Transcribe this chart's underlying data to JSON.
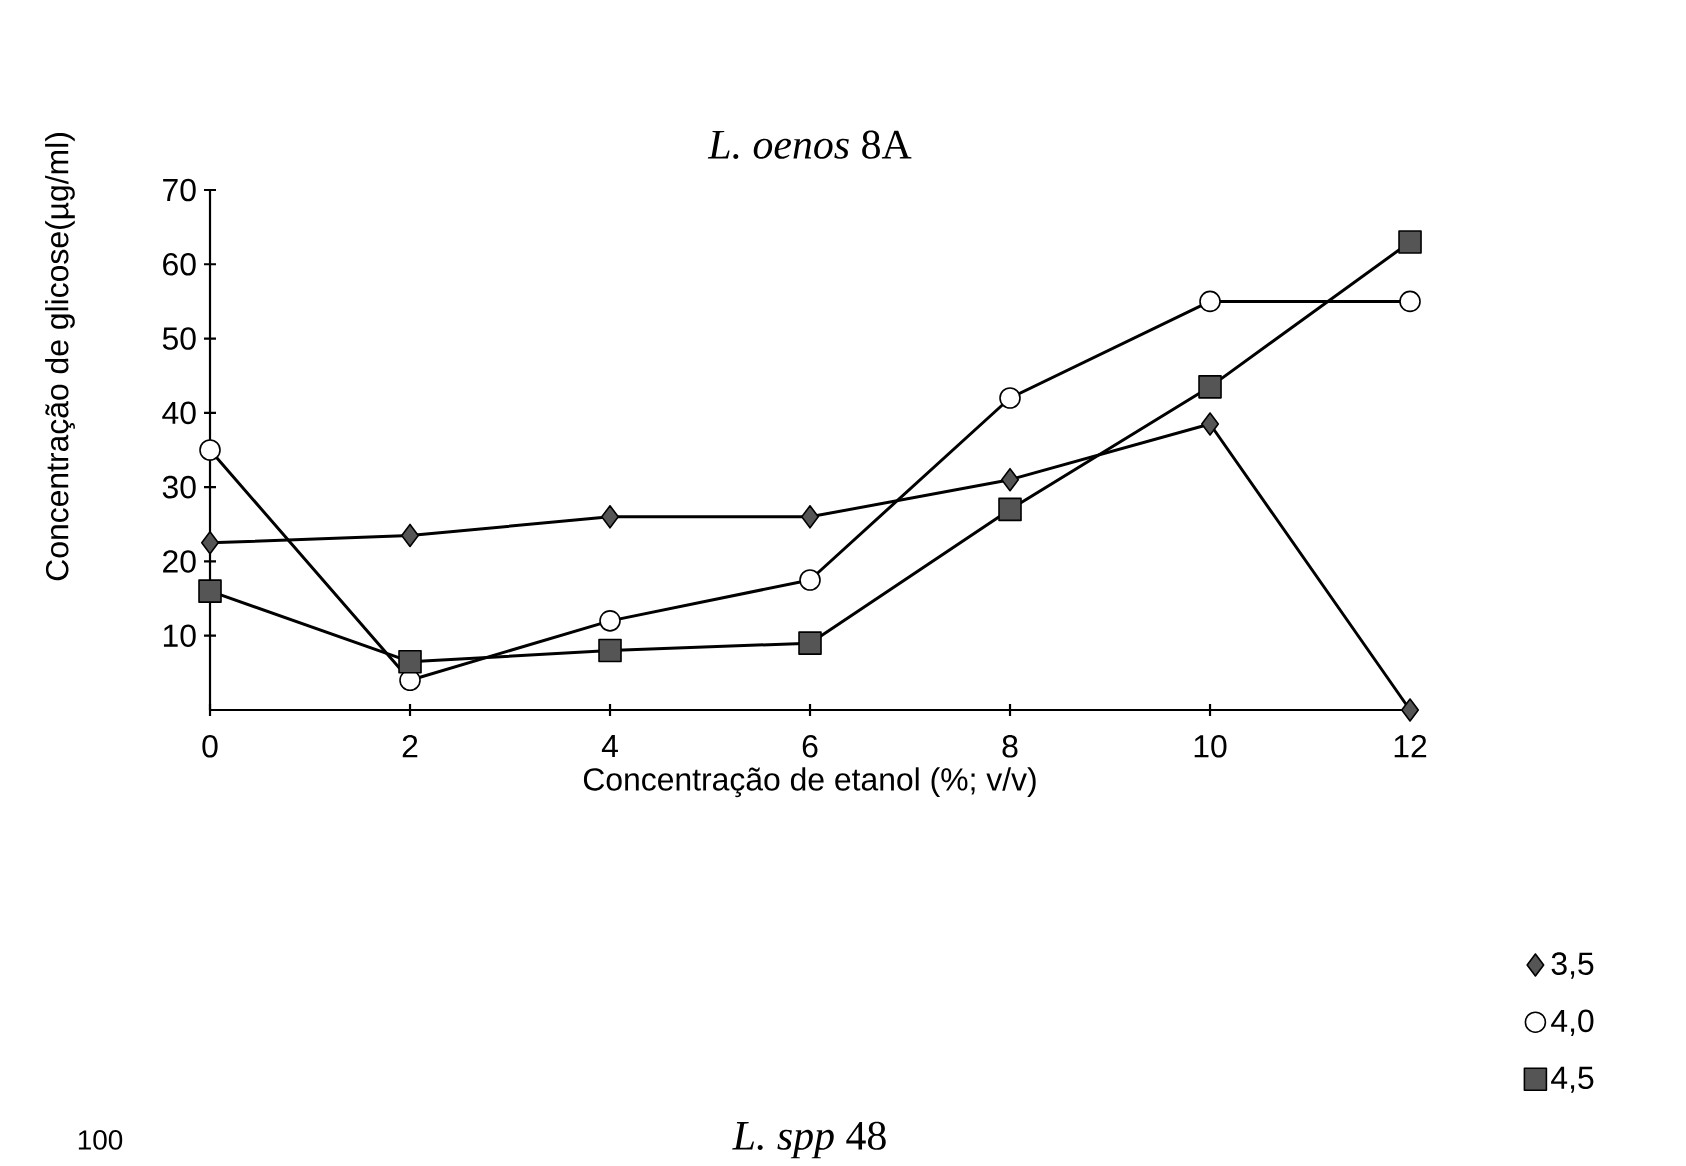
{
  "chart_data": [
    {
      "type": "line",
      "title": "*L. oenos* 8A",
      "xlabel": "Concentração de etanol (%; v/v)",
      "ylabel": "Concentração de glicose(µg/ml)",
      "x": [
        0,
        2,
        4,
        6,
        8,
        10,
        12
      ],
      "series": [
        {
          "name": "3,5",
          "color": "#555555",
          "marker": "diamond",
          "values": [
            22.5,
            23.5,
            26,
            26,
            31,
            38.5,
            0
          ]
        },
        {
          "name": "4,0",
          "color": "#ffffff",
          "marker": "circle",
          "values": [
            35,
            4,
            12,
            17.5,
            42,
            55,
            55
          ]
        },
        {
          "name": "4,5",
          "color": "#555555",
          "marker": "square",
          "values": [
            16,
            6.5,
            8,
            9,
            27,
            43.5,
            63
          ]
        }
      ],
      "xlim": [
        0,
        12
      ],
      "xticks": [
        0,
        2,
        4,
        6,
        8,
        10,
        12
      ],
      "ylim": [
        0,
        70
      ],
      "yticks": [
        10,
        20,
        30,
        40,
        50,
        60,
        70
      ],
      "legend": "bottom right",
      "line_style": "solid"
    },
    {
      "type": "other",
      "title": "*L. spp* 48",
      "annotations": [
        "100"
      ]
    }
  ]
}
